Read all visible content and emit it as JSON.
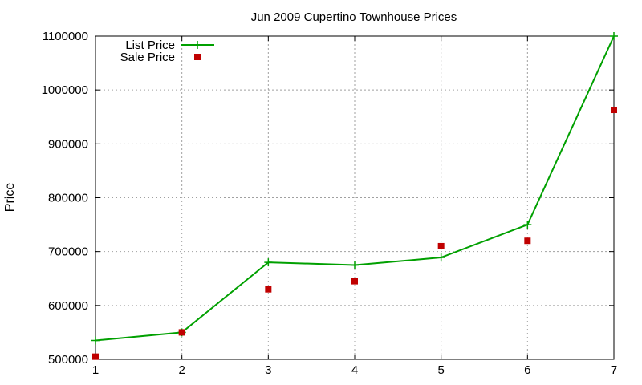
{
  "chart_data": {
    "type": "line",
    "title": "Jun 2009 Cupertino Townhouse Prices",
    "xlabel": "",
    "ylabel": "Price",
    "xlim": [
      1,
      7
    ],
    "ylim": [
      500000,
      1100000
    ],
    "x_ticks": [
      1,
      2,
      3,
      4,
      5,
      6,
      7
    ],
    "y_ticks": [
      500000,
      600000,
      700000,
      800000,
      900000,
      1000000,
      1100000
    ],
    "grid": true,
    "legend_position": "top-left",
    "series": [
      {
        "name": "List Price",
        "style": "line-with-plus-markers",
        "color": "#00a000",
        "x": [
          1,
          2,
          3,
          4,
          5,
          6,
          7
        ],
        "values": [
          535000,
          550000,
          680000,
          675000,
          689000,
          750000,
          1100000
        ]
      },
      {
        "name": "Sale Price",
        "style": "square-markers",
        "color": "#c00000",
        "x": [
          1,
          2,
          3,
          4,
          5,
          6,
          7
        ],
        "values": [
          505000,
          550000,
          630000,
          645000,
          710000,
          720000,
          963000
        ]
      }
    ]
  }
}
